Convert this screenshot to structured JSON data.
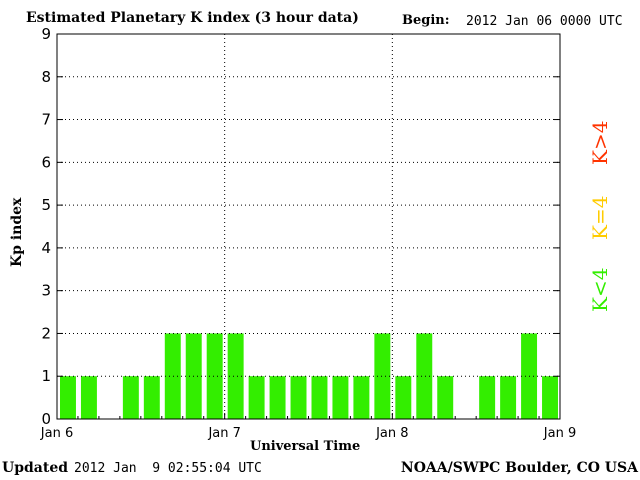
{
  "header": {
    "title": "Estimated Planetary K index (3 hour data)",
    "begin_label": "Begin:",
    "begin_value": "2012 Jan 06 0000 UTC"
  },
  "footer": {
    "updated_label": "Updated",
    "updated_value": "2012 Jan  9 02:55:04 UTC",
    "credit": "NOAA/SWPC Boulder, CO USA"
  },
  "legend": [
    {
      "label": "K>4",
      "color": "#ff3300"
    },
    {
      "label": "K=4",
      "color": "#ffcc00"
    },
    {
      "label": "K<4",
      "color": "#33ee00"
    }
  ],
  "chart_data": {
    "type": "bar",
    "title": "Estimated Planetary K index (3 hour data)",
    "xlabel": "Universal Time",
    "ylabel": "Kp index",
    "ylim": [
      0,
      9
    ],
    "yticks": [
      0,
      1,
      2,
      3,
      4,
      5,
      6,
      7,
      8,
      9
    ],
    "xticks": [
      "Jan 6",
      "Jan 7",
      "Jan 8",
      "Jan 9"
    ],
    "grid": "dotted",
    "bar_color": "#33ee00",
    "bar_interval_hours": 3,
    "values": [
      1,
      1,
      0,
      1,
      1,
      2,
      2,
      2,
      2,
      1,
      1,
      1,
      1,
      1,
      1,
      2,
      1,
      2,
      1,
      0,
      1,
      1,
      2,
      1
    ]
  }
}
